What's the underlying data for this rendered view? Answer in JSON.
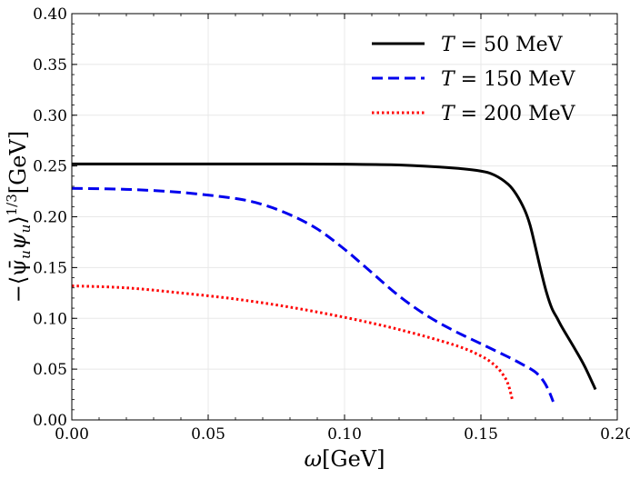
{
  "chart_data": {
    "type": "line",
    "title": "",
    "xlabel": "ω[GeV]",
    "ylabel": "−⟨ψ̄uψu⟩1/3[GeV]",
    "ylabel_parts": {
      "main": "−⟨ψ̄",
      "sub1": "u",
      "mid": "ψ",
      "sub2": "u",
      "close": "⟩",
      "sup": "1/3",
      "unit": "[GeV]"
    },
    "xlim": [
      0.0,
      0.2
    ],
    "ylim": [
      0.0,
      0.4
    ],
    "x_ticks": [
      "0.00",
      "0.05",
      "0.10",
      "0.15",
      "0.20"
    ],
    "y_ticks": [
      "0.00",
      "0.05",
      "0.10",
      "0.15",
      "0.20",
      "0.25",
      "0.30",
      "0.35",
      "0.40"
    ],
    "grid": true,
    "legend_position": "top-right",
    "series": [
      {
        "name": "T = 50 MeV",
        "name_parts": {
          "var": "T",
          "rest": " = 50 MeV"
        },
        "color": "#000000",
        "style": "solid",
        "x": [
          0.0,
          0.02,
          0.04,
          0.06,
          0.08,
          0.1,
          0.12,
          0.14,
          0.15,
          0.155,
          0.16,
          0.163,
          0.166,
          0.168,
          0.17,
          0.172,
          0.174,
          0.176,
          0.178,
          0.18,
          0.184,
          0.188,
          0.192
        ],
        "y": [
          0.252,
          0.252,
          0.252,
          0.252,
          0.252,
          0.2518,
          0.251,
          0.248,
          0.245,
          0.241,
          0.232,
          0.222,
          0.207,
          0.192,
          0.17,
          0.147,
          0.126,
          0.11,
          0.1,
          0.09,
          0.072,
          0.053,
          0.03
        ]
      },
      {
        "name": "T = 150 MeV",
        "name_parts": {
          "var": "T",
          "rest": " = 150 MeV"
        },
        "color": "#0000ee",
        "style": "dashed",
        "x": [
          0.0,
          0.02,
          0.04,
          0.06,
          0.07,
          0.08,
          0.09,
          0.1,
          0.11,
          0.12,
          0.13,
          0.14,
          0.15,
          0.16,
          0.165,
          0.17,
          0.173,
          0.175,
          0.1765
        ],
        "y": [
          0.228,
          0.227,
          0.224,
          0.218,
          0.212,
          0.202,
          0.188,
          0.168,
          0.145,
          0.122,
          0.103,
          0.088,
          0.075,
          0.062,
          0.055,
          0.047,
          0.038,
          0.028,
          0.018
        ]
      },
      {
        "name": "T = 200 MeV",
        "name_parts": {
          "var": "T",
          "rest": " = 200 MeV"
        },
        "color": "#ff0000",
        "style": "dotted",
        "x": [
          0.0,
          0.02,
          0.04,
          0.06,
          0.08,
          0.1,
          0.12,
          0.14,
          0.15,
          0.155,
          0.158,
          0.16,
          0.1615
        ],
        "y": [
          0.132,
          0.13,
          0.125,
          0.119,
          0.111,
          0.101,
          0.089,
          0.074,
          0.063,
          0.054,
          0.045,
          0.035,
          0.02
        ]
      }
    ]
  }
}
